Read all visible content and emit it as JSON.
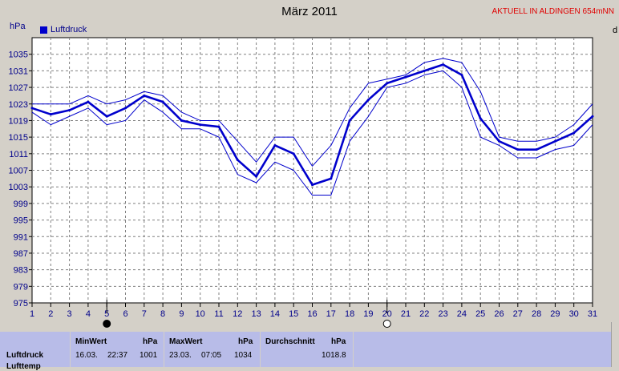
{
  "header": {
    "title": "März 2011",
    "right_note": "AKTUELL IN ALDINGEN 654mNN",
    "right_letter": "d",
    "unit": "hPa"
  },
  "chart_data": {
    "type": "line",
    "title": "März 2011",
    "ylabel": "hPa",
    "x": [
      1,
      2,
      3,
      4,
      5,
      6,
      7,
      8,
      9,
      10,
      11,
      12,
      13,
      14,
      15,
      16,
      17,
      18,
      19,
      20,
      21,
      22,
      23,
      24,
      25,
      26,
      27,
      28,
      29,
      30,
      31
    ],
    "xlim": [
      1,
      31
    ],
    "ylim": [
      975,
      1039
    ],
    "yticks": [
      975,
      979,
      983,
      987,
      991,
      995,
      999,
      1003,
      1007,
      1011,
      1015,
      1019,
      1023,
      1027,
      1031,
      1035
    ],
    "grid": true,
    "legend": "top-left",
    "moon_phases": [
      {
        "day": 5,
        "phase": "new"
      },
      {
        "day": 20,
        "phase": "full"
      }
    ],
    "series": [
      {
        "name": "Luftdruck",
        "role": "average",
        "color": "#0000cc",
        "values": [
          1022,
          1020.5,
          1021.5,
          1023.5,
          1020,
          1022,
          1025,
          1023.5,
          1019,
          1018,
          1017.5,
          1009.5,
          1005.5,
          1013,
          1011,
          1003.5,
          1005,
          1019,
          1024,
          1028,
          1029.5,
          1031,
          1032.5,
          1030,
          1019.5,
          1014,
          1012,
          1012,
          1014,
          1016,
          1020
        ]
      },
      {
        "name": "",
        "role": "max",
        "color": "#0000cc",
        "values": [
          1023,
          1023,
          1023,
          1025,
          1023,
          1024,
          1026,
          1025,
          1021,
          1019,
          1019,
          1014,
          1009,
          1015,
          1015,
          1008,
          1013,
          1022,
          1028,
          1029,
          1030,
          1033,
          1034,
          1033,
          1026,
          1015,
          1014,
          1014,
          1015,
          1018,
          1023
        ]
      },
      {
        "name": "",
        "role": "min",
        "color": "#0000cc",
        "values": [
          1021,
          1018,
          1020,
          1022,
          1018,
          1019,
          1024,
          1021,
          1017,
          1017,
          1015,
          1006,
          1004,
          1009,
          1007,
          1001,
          1001,
          1014,
          1020,
          1027,
          1028,
          1030,
          1031,
          1027,
          1015,
          1013,
          1010,
          1010,
          1012,
          1013,
          1018
        ]
      }
    ]
  },
  "stats": {
    "row_label": "Luftdruck",
    "row_label_2": "Lufttemp",
    "min": {
      "header": "MinWert",
      "unit": "hPa",
      "date": "16.03.",
      "time": "22:37",
      "value": "1001"
    },
    "max": {
      "header": "MaxWert",
      "unit": "hPa",
      "date": "23.03.",
      "time": "07:05",
      "value": "1034"
    },
    "avg": {
      "header": "Durchschnitt",
      "unit": "hPa",
      "value": "1018.8"
    }
  }
}
